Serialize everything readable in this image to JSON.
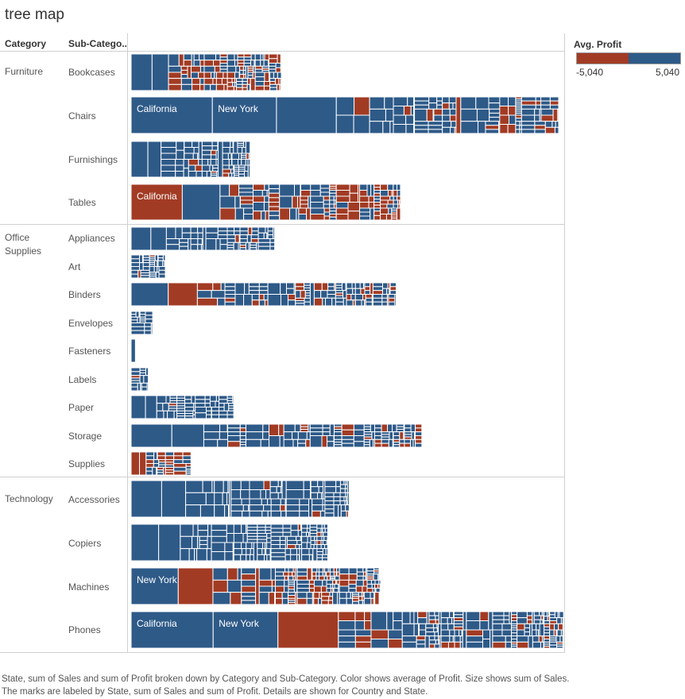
{
  "title": "tree map",
  "headers": {
    "category": "Category",
    "sub_category": "Sub-Catego.."
  },
  "legend": {
    "title": "Avg. Profit",
    "min_label": "-5,040",
    "max_label": "5,040",
    "neg_color": "#a23b24",
    "pos_color": "#2e5a88"
  },
  "caption": "State, sum of Sales and sum of Profit broken down by Category and Sub-Category.  Color shows average of Profit.  Size shows sum of Sales.  The marks are labeled by State, sum of Sales and sum of Profit.  Details are shown for Country and State.",
  "chart_data": {
    "type": "treemap",
    "color_by": "Avg. Profit",
    "size_by": "sum of Sales",
    "categories": [
      {
        "name": "Furniture",
        "sub_categories": [
          {
            "name": "Bookcases",
            "relative_sales": 0.35
          },
          {
            "name": "Chairs",
            "relative_sales": 1.0,
            "labels": [
              "California",
              "New York"
            ]
          },
          {
            "name": "Furnishings",
            "relative_sales": 0.28
          },
          {
            "name": "Tables",
            "relative_sales": 0.63,
            "labels": [
              "California"
            ]
          }
        ]
      },
      {
        "name": "Office Supplies",
        "sub_categories": [
          {
            "name": "Appliances",
            "relative_sales": 0.33
          },
          {
            "name": "Art",
            "relative_sales": 0.08
          },
          {
            "name": "Binders",
            "relative_sales": 0.62
          },
          {
            "name": "Envelopes",
            "relative_sales": 0.05
          },
          {
            "name": "Fasteners",
            "relative_sales": 0.01
          },
          {
            "name": "Labels",
            "relative_sales": 0.04
          },
          {
            "name": "Paper",
            "relative_sales": 0.24
          },
          {
            "name": "Storage",
            "relative_sales": 0.68
          },
          {
            "name": "Supplies",
            "relative_sales": 0.14
          }
        ]
      },
      {
        "name": "Technology",
        "sub_categories": [
          {
            "name": "Accessories",
            "relative_sales": 0.51
          },
          {
            "name": "Copiers",
            "relative_sales": 0.46
          },
          {
            "name": "Machines",
            "relative_sales": 0.58,
            "labels": [
              "New York"
            ]
          },
          {
            "name": "Phones",
            "relative_sales": 1.01,
            "labels": [
              "California",
              "New York"
            ]
          }
        ]
      }
    ]
  }
}
